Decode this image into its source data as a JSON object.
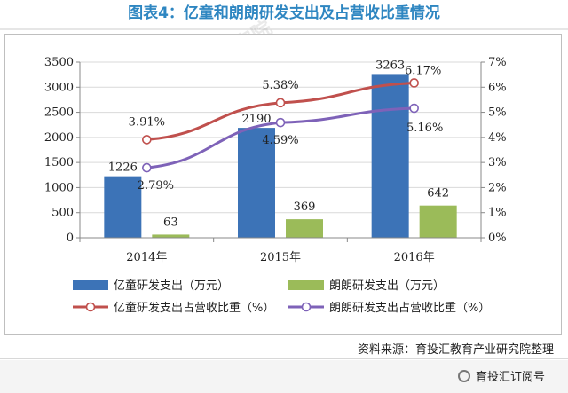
{
  "title": "图表4：亿童和朗朗研发支出及占营收比重情况",
  "source": "资料来源：育投汇教育产业研究院整理",
  "brand": "育投汇订阅号",
  "watermark": "育投汇教育产业研究院",
  "chart_data": {
    "type": "bar",
    "categories": [
      "2014年",
      "2015年",
      "2016年"
    ],
    "ylim_left": [
      0,
      3500
    ],
    "yticks_left": [
      "0",
      "500",
      "1000",
      "1500",
      "2000",
      "2500",
      "3000",
      "3500"
    ],
    "ylim_right": [
      0,
      7
    ],
    "yticks_right": [
      "0%",
      "1%",
      "2%",
      "3%",
      "4%",
      "5%",
      "6%",
      "7%"
    ],
    "grid": true,
    "legend_position": "bottom",
    "bar_series": [
      {
        "name": "亿童研发支出（万元）",
        "values": [
          1226,
          2190,
          3263
        ],
        "labels": [
          "1226",
          "2190",
          "3263"
        ],
        "color": "#3c73b7"
      },
      {
        "name": "朗朗研发支出（万元）",
        "values": [
          63,
          369,
          642
        ],
        "labels": [
          "63",
          "369",
          "642"
        ],
        "color": "#9bbb59"
      }
    ],
    "line_series": [
      {
        "name": "亿童研发支出占营收比重（%）",
        "values": [
          3.91,
          5.38,
          6.17
        ],
        "labels": [
          "3.91%",
          "5.38%",
          "6.17%"
        ],
        "color": "#c0504d"
      },
      {
        "name": "朗朗研发支出占营收比重（%）",
        "values": [
          2.79,
          4.59,
          5.16
        ],
        "labels": [
          "2.79%",
          "4.59%",
          "5.16%"
        ],
        "color": "#7e62b8"
      }
    ]
  }
}
